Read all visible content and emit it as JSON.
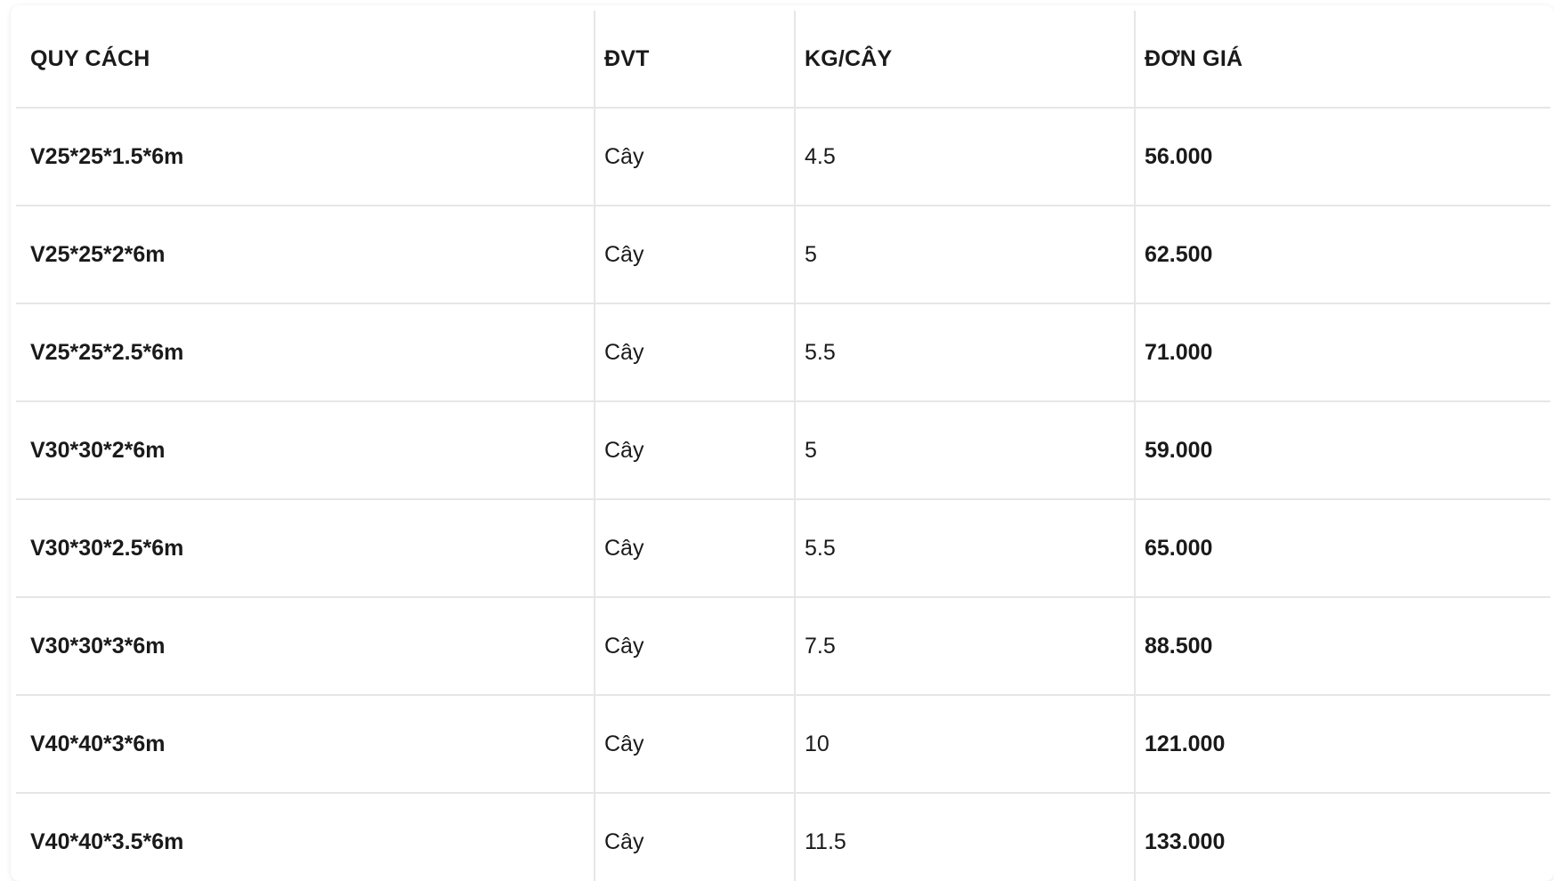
{
  "table": {
    "headers": {
      "spec": "QUY CÁCH",
      "unit": "ĐVT",
      "kg": "KG/CÂY",
      "price": "ĐƠN GIÁ"
    },
    "rows": [
      {
        "spec": "V25*25*1.5*6m",
        "unit": "Cây",
        "kg": "4.5",
        "price": "56.000"
      },
      {
        "spec": "V25*25*2*6m",
        "unit": "Cây",
        "kg": "5",
        "price": "62.500"
      },
      {
        "spec": "V25*25*2.5*6m",
        "unit": "Cây",
        "kg": "5.5",
        "price": "71.000"
      },
      {
        "spec": "V30*30*2*6m",
        "unit": "Cây",
        "kg": "5",
        "price": "59.000"
      },
      {
        "spec": "V30*30*2.5*6m",
        "unit": "Cây",
        "kg": "5.5",
        "price": "65.000"
      },
      {
        "spec": "V30*30*3*6m",
        "unit": "Cây",
        "kg": "7.5",
        "price": "88.500"
      },
      {
        "spec": "V40*40*3*6m",
        "unit": "Cây",
        "kg": "10",
        "price": "121.000"
      },
      {
        "spec": "V40*40*3.5*6m",
        "unit": "Cây",
        "kg": "11.5",
        "price": "133.000"
      }
    ]
  }
}
